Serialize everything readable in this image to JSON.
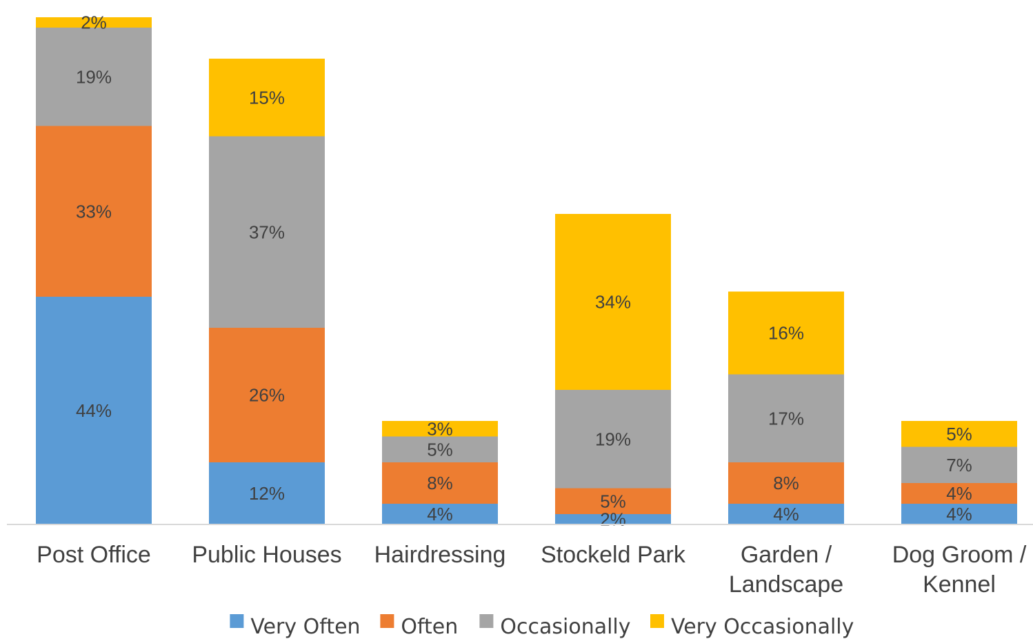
{
  "chart_data": {
    "type": "bar",
    "stacked": true,
    "categories": [
      [
        "Post Office"
      ],
      [
        "Public Houses"
      ],
      [
        "Hairdressing"
      ],
      [
        "Stockeld Park"
      ],
      [
        "Garden /",
        "Landscape"
      ],
      [
        "Dog Groom /",
        "Kennel"
      ]
    ],
    "series": [
      {
        "name": "Very Often",
        "color": "#5B9BD5",
        "values": [
          44,
          12,
          4,
          2,
          4,
          4
        ],
        "labels": [
          "44%",
          "12%",
          "4%",
          "2%",
          "4%",
          "4%"
        ]
      },
      {
        "name": "Often",
        "color": "#ED7D31",
        "values": [
          33,
          26,
          8,
          5,
          8,
          4
        ],
        "labels": [
          "33%",
          "26%",
          "8%",
          "5%",
          "8%",
          "4%"
        ]
      },
      {
        "name": "Occasionally",
        "color": "#A5A5A5",
        "values": [
          19,
          37,
          5,
          19,
          17,
          7
        ],
        "labels": [
          "19%",
          "37%",
          "5%",
          "19%",
          "17%",
          "7%"
        ]
      },
      {
        "name": "Very Occasionally",
        "color": "#FFC000",
        "values": [
          2,
          15,
          3,
          34,
          16,
          5
        ],
        "labels": [
          "2%",
          "15%",
          "3%",
          "34%",
          "16%",
          "5%"
        ]
      }
    ],
    "ylim": [
      0,
      100
    ],
    "legend_position": "bottom",
    "grid": false
  }
}
